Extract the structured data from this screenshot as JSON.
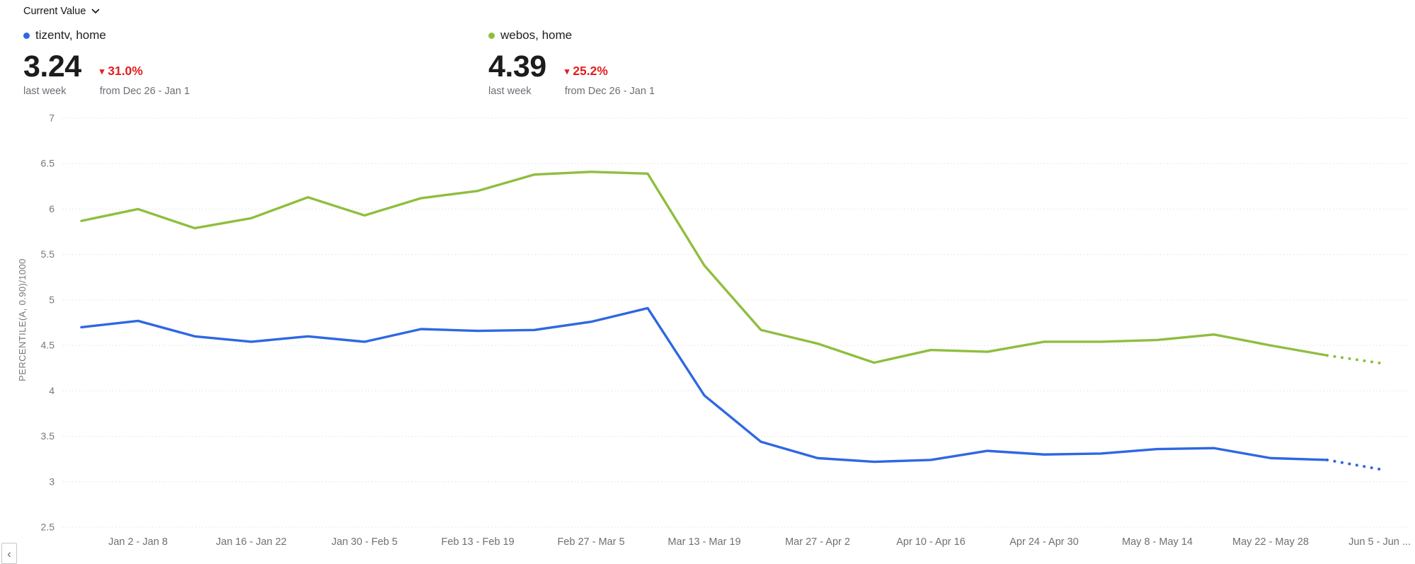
{
  "header": {
    "metric_selector": "Current Value"
  },
  "icons": {
    "triangle_down": "▾",
    "prev": "‹"
  },
  "colors": {
    "tizentv": "#2e68e2",
    "webos": "#8fbe3f",
    "negative": "#e01f1f",
    "grid": "#dfe4ec",
    "axis_text": "#77787b"
  },
  "summaries": [
    {
      "name": "tizentv, home",
      "value": "3.24",
      "period": "last week",
      "change_pct": "31.0%",
      "change_direction": "down",
      "baseline": "from Dec 26 - Jan 1"
    },
    {
      "name": "webos, home",
      "value": "4.39",
      "period": "last week",
      "change_pct": "25.2%",
      "change_direction": "down",
      "baseline": "from Dec 26 - Jan 1"
    }
  ],
  "chart_data": {
    "type": "line",
    "title": "",
    "xlabel": "",
    "ylabel": "PERCENTILE(A, 0.90)/1000",
    "ylim": [
      2.5,
      7
    ],
    "ytick_step": 0.5,
    "grid": "horizontal dotted",
    "legend_position": "top",
    "point_count": 24,
    "dotted_tail_from_index": 22,
    "xticks": [
      {
        "index": 1,
        "label": "Jan 2 - Jan 8"
      },
      {
        "index": 3,
        "label": "Jan 16 - Jan 22"
      },
      {
        "index": 5,
        "label": "Jan 30 - Feb 5"
      },
      {
        "index": 7,
        "label": "Feb 13 - Feb 19"
      },
      {
        "index": 9,
        "label": "Feb 27 - Mar 5"
      },
      {
        "index": 11,
        "label": "Mar 13 - Mar 19"
      },
      {
        "index": 13,
        "label": "Mar 27 - Apr 2"
      },
      {
        "index": 15,
        "label": "Apr 10 - Apr 16"
      },
      {
        "index": 17,
        "label": "Apr 24 - Apr 30"
      },
      {
        "index": 19,
        "label": "May 8 - May 14"
      },
      {
        "index": 21,
        "label": "May 22 - May 28"
      },
      {
        "index": 23,
        "label": "Jun 5 - Jun ..."
      }
    ],
    "series": [
      {
        "name": "tizentv, home",
        "color": "#2e68e2",
        "values": [
          4.7,
          4.77,
          4.6,
          4.54,
          4.6,
          4.54,
          4.68,
          4.66,
          4.67,
          4.76,
          4.91,
          3.95,
          3.44,
          3.26,
          3.22,
          3.24,
          3.34,
          3.3,
          3.31,
          3.36,
          3.37,
          3.26,
          3.24,
          3.13
        ]
      },
      {
        "name": "webos, home",
        "color": "#8fbe3f",
        "values": [
          5.87,
          6.0,
          5.79,
          5.9,
          6.13,
          5.93,
          6.12,
          6.2,
          6.38,
          6.41,
          6.39,
          5.38,
          4.67,
          4.52,
          4.31,
          4.45,
          4.43,
          4.54,
          4.54,
          4.56,
          4.62,
          4.5,
          4.39,
          4.3
        ]
      }
    ]
  }
}
